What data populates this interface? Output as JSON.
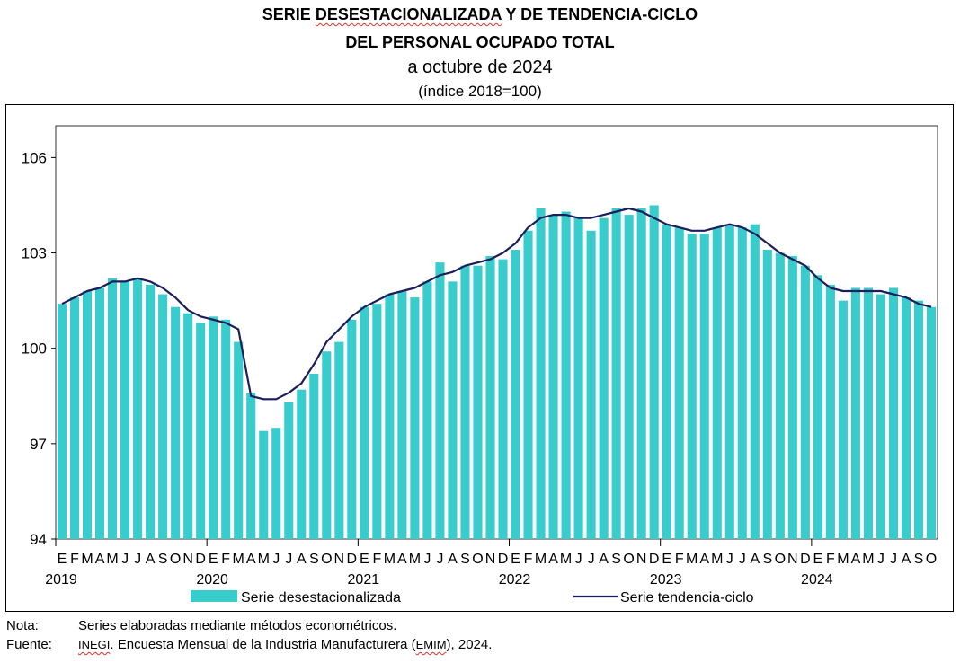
{
  "title": {
    "part1": "SERIE ",
    "part2": "DESESTACIONALIZADA",
    "part3": " Y DE TENDENCIA-CICLO",
    "line2": "DEL PERSONAL OCUPADO TOTAL",
    "line3": "a octubre de 2024",
    "line4": "(índice 2018=100)"
  },
  "notes": {
    "nota_label": "Nota:",
    "nota_text": "Series elaboradas mediante métodos econométricos.",
    "fuente_label": "Fuente:",
    "fuente_inegi": "INEGI",
    "fuente_text1": ". Encuesta Mensual de la Industria Manufacturera (",
    "fuente_emim": "EMIM",
    "fuente_text2": "), 2024."
  },
  "colors": {
    "bars": "#39cccc",
    "line": "#1a1f5c"
  },
  "chart_data": {
    "type": "bar+line",
    "ylim": [
      94,
      107
    ],
    "yticks": [
      94,
      97,
      100,
      103,
      106
    ],
    "month_letters": [
      "E",
      "F",
      "M",
      "A",
      "M",
      "J",
      "J",
      "A",
      "S",
      "O",
      "N",
      "D"
    ],
    "years": [
      "2019",
      "2020",
      "2021",
      "2022",
      "2023",
      "2024"
    ],
    "legend": {
      "bars": "Serie desestacionalizada",
      "line": "Serie tendencia-ciclo"
    },
    "series": [
      {
        "name": "Serie desestacionalizada",
        "kind": "bar",
        "values": [
          101.4,
          101.6,
          101.8,
          101.9,
          102.2,
          102.1,
          102.2,
          102.0,
          101.7,
          101.3,
          101.1,
          100.8,
          101.0,
          100.9,
          100.2,
          98.6,
          97.4,
          97.5,
          98.3,
          98.7,
          99.2,
          99.9,
          100.2,
          100.9,
          101.3,
          101.4,
          101.7,
          101.8,
          101.6,
          102.1,
          102.7,
          102.1,
          102.6,
          102.6,
          102.9,
          102.8,
          103.1,
          103.7,
          104.4,
          104.2,
          104.3,
          104.1,
          103.7,
          104.1,
          104.4,
          104.2,
          104.4,
          104.5,
          103.9,
          103.8,
          103.6,
          103.6,
          103.8,
          103.9,
          103.8,
          103.9,
          103.1,
          103.0,
          102.9,
          102.6,
          102.3,
          102.0,
          101.5,
          101.9,
          101.9,
          101.7,
          101.9,
          101.6,
          101.5,
          101.3
        ],
        "months": 70
      },
      {
        "name": "Serie tendencia-ciclo",
        "kind": "line",
        "values": [
          101.4,
          101.6,
          101.8,
          101.9,
          102.1,
          102.1,
          102.2,
          102.1,
          101.9,
          101.6,
          101.2,
          101.0,
          100.9,
          100.8,
          100.6,
          98.5,
          98.4,
          98.4,
          98.6,
          98.9,
          99.5,
          100.2,
          100.6,
          101.0,
          101.3,
          101.5,
          101.7,
          101.8,
          101.9,
          102.1,
          102.3,
          102.4,
          102.6,
          102.7,
          102.8,
          103.0,
          103.3,
          103.8,
          104.1,
          104.2,
          104.2,
          104.1,
          104.1,
          104.2,
          104.3,
          104.4,
          104.3,
          104.1,
          103.9,
          103.8,
          103.7,
          103.7,
          103.8,
          103.9,
          103.8,
          103.6,
          103.3,
          103.0,
          102.8,
          102.6,
          102.2,
          101.9,
          101.8,
          101.8,
          101.8,
          101.8,
          101.7,
          101.6,
          101.4,
          101.3
        ]
      }
    ]
  }
}
